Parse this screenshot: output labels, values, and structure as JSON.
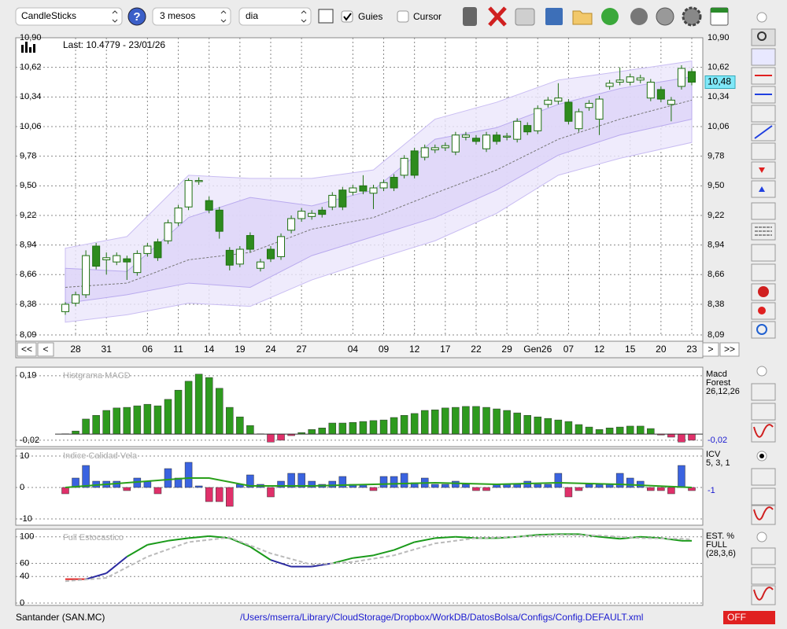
{
  "toolbar": {
    "chart_type": "CandleSticks",
    "period": "3 mesos",
    "interval": "dia",
    "guides": "Guies",
    "guides_checked": true,
    "cursor": "Cursor",
    "cursor_checked": false
  },
  "navigation": [
    "<<",
    "<",
    ">",
    ">>"
  ],
  "status": {
    "symbol": "Santander (SAN.MC)",
    "config_path": "/Users/mserra/Library/CloudStorage/Dropbox/WorkDB/DatosBolsa/Configs/Config.DEFAULT.xml",
    "state": "OFF"
  },
  "chart_data": [
    {
      "type": "candlestick",
      "annotation": "Last: 10.4779 - 23/01/26",
      "categories": [
        null,
        "28",
        null,
        null,
        "31",
        null,
        null,
        null,
        "06",
        null,
        null,
        "11",
        null,
        null,
        "14",
        null,
        null,
        "19",
        null,
        null,
        "24",
        null,
        null,
        "27",
        null,
        null,
        null,
        null,
        "04",
        null,
        null,
        "09",
        null,
        null,
        "12",
        null,
        null,
        "17",
        null,
        null,
        "22",
        null,
        null,
        "29",
        null,
        null,
        "Gen26",
        null,
        null,
        "07",
        null,
        null,
        "12",
        null,
        null,
        "15",
        null,
        null,
        "20",
        null,
        null,
        "23"
      ],
      "open": [
        8.31,
        8.39,
        8.47,
        8.93,
        8.8,
        8.78,
        8.81,
        8.68,
        8.86,
        8.97,
        8.98,
        9.15,
        9.3,
        9.54,
        9.36,
        9.27,
        8.89,
        8.76,
        9.03,
        8.72,
        8.9,
        8.83,
        9.08,
        9.19,
        9.21,
        9.27,
        9.3,
        9.46,
        9.44,
        9.5,
        9.43,
        9.48,
        9.58,
        9.6,
        9.83,
        9.77,
        9.84,
        9.86,
        9.82,
        9.96,
        9.95,
        9.85,
        9.98,
        9.96,
        9.94,
        10.07,
        10.02,
        10.27,
        10.3,
        10.29,
        10.04,
        10.24,
        10.13,
        10.44,
        10.48,
        10.48,
        10.5,
        10.33,
        10.41,
        10.27,
        10.44,
        10.58
      ],
      "close": [
        8.38,
        8.47,
        8.84,
        8.74,
        8.82,
        8.84,
        8.78,
        8.86,
        8.93,
        8.82,
        9.15,
        9.29,
        9.55,
        9.55,
        9.27,
        9.07,
        8.75,
        8.9,
        8.9,
        8.78,
        8.81,
        9.02,
        9.19,
        9.26,
        9.24,
        9.23,
        9.41,
        9.3,
        9.48,
        9.45,
        9.48,
        9.53,
        9.48,
        9.76,
        9.6,
        9.86,
        9.86,
        9.88,
        9.98,
        9.98,
        9.92,
        9.98,
        9.92,
        9.97,
        10.11,
        10.01,
        10.23,
        10.31,
        10.33,
        10.11,
        10.2,
        10.28,
        10.32,
        10.47,
        10.5,
        10.53,
        10.52,
        10.48,
        10.32,
        10.31,
        10.61,
        10.48
      ],
      "high": [
        8.4,
        8.5,
        8.89,
        8.96,
        8.87,
        8.87,
        8.84,
        8.89,
        8.96,
        9.0,
        9.18,
        9.32,
        9.57,
        9.58,
        9.4,
        9.3,
        8.92,
        8.93,
        9.06,
        8.81,
        8.93,
        9.05,
        9.22,
        9.29,
        9.27,
        9.3,
        9.44,
        9.49,
        9.51,
        9.6,
        9.51,
        9.56,
        9.61,
        9.79,
        9.86,
        9.89,
        9.89,
        9.91,
        10.01,
        10.01,
        9.98,
        10.01,
        10.01,
        10.0,
        10.14,
        10.1,
        10.26,
        10.34,
        10.47,
        10.32,
        10.23,
        10.31,
        10.35,
        10.5,
        10.62,
        10.56,
        10.55,
        10.51,
        10.44,
        10.34,
        10.64,
        10.61
      ],
      "low": [
        8.28,
        8.36,
        8.44,
        8.71,
        8.66,
        8.75,
        8.61,
        8.65,
        8.83,
        8.79,
        8.95,
        9.12,
        9.27,
        9.51,
        9.24,
        9.0,
        8.7,
        8.73,
        8.87,
        8.69,
        8.78,
        8.8,
        9.05,
        9.16,
        9.18,
        9.2,
        9.27,
        9.27,
        9.41,
        9.42,
        9.28,
        9.45,
        9.45,
        9.57,
        9.57,
        9.74,
        9.81,
        9.83,
        9.79,
        9.93,
        9.89,
        9.82,
        9.89,
        9.93,
        9.91,
        9.98,
        9.99,
        10.24,
        10.27,
        10.08,
        10.01,
        10.21,
        9.98,
        10.41,
        10.45,
        10.45,
        10.47,
        10.3,
        10.29,
        10.11,
        10.41,
        10.45
      ],
      "up_color": "#ffffff",
      "down_color": "#2e8b1e",
      "edge_color": "#1e7010",
      "ylim": [
        8.075,
        10.9
      ],
      "yticks": [
        {
          "value": 8.09,
          "label": "8,09"
        },
        {
          "value": 8.38,
          "label": "8,38"
        },
        {
          "value": 8.66,
          "label": "8,66"
        },
        {
          "value": 8.94,
          "label": "8,94"
        },
        {
          "value": 9.22,
          "label": "9,22"
        },
        {
          "value": 9.5,
          "label": "9,50"
        },
        {
          "value": 9.78,
          "label": "9,78"
        },
        {
          "value": 10.06,
          "label": "10,06"
        },
        {
          "value": 10.34,
          "label": "10,34"
        },
        {
          "value": 10.62,
          "label": "10,62"
        },
        {
          "value": 10.9,
          "label": "10,90"
        }
      ],
      "grid": true,
      "last_marker": {
        "value": 10.48,
        "label": "10,48",
        "color": "#7fe8f8"
      },
      "bands": {
        "x": [
          0,
          6,
          12,
          18,
          24,
          30,
          36,
          42,
          48,
          54,
          61
        ],
        "outer": {
          "upper": [
            8.91,
            9.02,
            9.6,
            9.57,
            9.57,
            9.65,
            10.13,
            10.29,
            10.5,
            10.58,
            10.68
          ],
          "lower": [
            8.21,
            8.28,
            8.39,
            8.36,
            8.61,
            8.8,
            8.98,
            9.24,
            9.6,
            9.76,
            9.91
          ],
          "color": "#ebe6fb",
          "edge": "#c9bdf2"
        },
        "inner": {
          "upper": [
            8.72,
            8.69,
            9.2,
            9.39,
            9.31,
            9.46,
            9.94,
            10.05,
            10.27,
            10.42,
            10.53
          ],
          "lower": [
            8.39,
            8.47,
            8.58,
            8.54,
            8.84,
            9.02,
            9.2,
            9.46,
            9.79,
            9.98,
            10.13
          ],
          "color": "#ddd5f8",
          "edge": "#b9aaee"
        },
        "middle": {
          "values": [
            8.54,
            8.58,
            8.8,
            8.87,
            9.09,
            9.2,
            9.43,
            9.65,
            9.94,
            10.13,
            10.31
          ],
          "color": "#777777"
        }
      }
    },
    {
      "type": "bar",
      "title": "Histgrama MACD",
      "values": [
        0.001,
        0.01,
        0.049,
        0.061,
        0.077,
        0.085,
        0.087,
        0.092,
        0.097,
        0.092,
        0.113,
        0.143,
        0.172,
        0.195,
        0.184,
        0.149,
        0.087,
        0.056,
        0.028,
        0.001,
        -0.026,
        -0.02,
        -0.005,
        0.005,
        0.015,
        0.02,
        0.036,
        0.036,
        0.038,
        0.041,
        0.044,
        0.046,
        0.054,
        0.061,
        0.067,
        0.077,
        0.079,
        0.085,
        0.087,
        0.09,
        0.09,
        0.087,
        0.082,
        0.077,
        0.069,
        0.061,
        0.056,
        0.051,
        0.046,
        0.041,
        0.031,
        0.023,
        0.015,
        0.02,
        0.023,
        0.026,
        0.026,
        0.018,
        -0.003,
        -0.01,
        -0.026,
        -0.02
      ],
      "up_color": "#2e9a1e",
      "down_color": "#e0306a",
      "ylim": [
        -0.033,
        0.21
      ],
      "yticks": [
        {
          "value": 0.19,
          "label": "0,19"
        },
        {
          "value": -0.02,
          "label": "-0,02"
        }
      ],
      "legend": [
        "Macd",
        "Forest",
        "26,12,26"
      ],
      "last_label": {
        "value": -0.02,
        "label": "-0,02"
      }
    },
    {
      "type": "bar_line",
      "title": "Indice Calidad Vela",
      "values": [
        -2,
        3,
        7,
        2,
        2,
        2,
        -1,
        3,
        2,
        -2,
        6,
        3,
        8,
        0.5,
        -4.5,
        -4.5,
        -6,
        1,
        4,
        1,
        -3,
        2,
        4.5,
        4.5,
        2,
        1,
        2,
        3.5,
        1,
        1,
        -1,
        3.5,
        3.5,
        4.5,
        1.5,
        3,
        1,
        1,
        2,
        1,
        -1,
        -1,
        1,
        1,
        1,
        2,
        1,
        1,
        4.5,
        -3,
        -1,
        1,
        1,
        1,
        4.5,
        3,
        2,
        -1,
        -1,
        -2,
        7,
        -1
      ],
      "up_color": "#3a63e0",
      "down_color": "#e0306a",
      "line": {
        "x": [
          0,
          6,
          12,
          14,
          18,
          24,
          30,
          36,
          42,
          48,
          54,
          61
        ],
        "values": [
          0,
          1.5,
          3,
          3,
          0.5,
          0.5,
          1,
          1.5,
          1,
          1.5,
          1,
          0
        ],
        "color": "#2aa01a"
      },
      "ylim": [
        -12,
        12
      ],
      "yticks": [
        10,
        0,
        -10
      ],
      "legend": [
        "ICV",
        "5, 3, 1"
      ],
      "last_value": -1
    },
    {
      "type": "line",
      "title": "Full Estocastico",
      "series": [
        {
          "x": [
            0,
            2,
            4,
            6,
            8,
            10,
            12,
            14,
            16,
            18,
            20,
            22,
            24,
            26,
            28,
            30,
            32,
            34,
            36,
            38,
            40,
            42,
            44,
            46,
            48,
            50,
            52,
            54,
            56,
            58,
            60,
            61
          ],
          "values": [
            36,
            36,
            45,
            70,
            88,
            94,
            98,
            101,
            98,
            85,
            65,
            55,
            55,
            60,
            68,
            72,
            80,
            92,
            98,
            100,
            98,
            98,
            100,
            103,
            104,
            104,
            100,
            97,
            100,
            98,
            94,
            94
          ],
          "zone_breaks": [
            40,
            60
          ],
          "zone_colors": [
            "#e02020",
            "#2a2aa0",
            "#1a9a1a"
          ]
        },
        {
          "x": [
            0,
            4,
            8,
            12,
            16,
            20,
            24,
            28,
            32,
            36,
            40,
            44,
            48,
            52,
            56,
            60,
            61
          ],
          "values": [
            33,
            38,
            70,
            92,
            99,
            75,
            58,
            62,
            72,
            90,
            98,
            100,
            103,
            102,
            98,
            97,
            96
          ],
          "color": "#bbbbbb",
          "dashed": true
        }
      ],
      "ylim": [
        0,
        108
      ],
      "yticks": [
        100,
        60,
        40,
        0
      ],
      "legend": [
        "EST. %",
        "FULL",
        "(28,3,6)"
      ]
    }
  ]
}
